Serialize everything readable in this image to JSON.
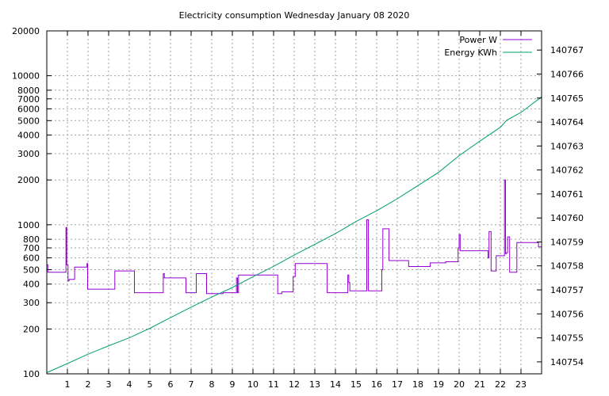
{
  "chart_data": {
    "type": "line",
    "title": "Electricity consumption Wednesday January 08 2020",
    "xlabel": "",
    "ylabel": "",
    "y2label": "",
    "x_ticks": [
      1,
      2,
      3,
      4,
      5,
      6,
      7,
      8,
      9,
      10,
      11,
      12,
      13,
      14,
      15,
      16,
      17,
      18,
      19,
      20,
      21,
      22,
      23
    ],
    "xlim": [
      0,
      24
    ],
    "y_scale": "log",
    "ylim": [
      100,
      20000
    ],
    "y_ticks": [
      100,
      200,
      300,
      400,
      500,
      600,
      700,
      800,
      1000,
      2000,
      3000,
      4000,
      5000,
      6000,
      7000,
      8000,
      10000,
      20000
    ],
    "y2lim": [
      140753.5,
      140767.8
    ],
    "y2_ticks": [
      140754,
      140755,
      140756,
      140757,
      140758,
      140759,
      140760,
      140761,
      140762,
      140763,
      140764,
      140765,
      140766,
      140767
    ],
    "grid": true,
    "legend_position": "top-right",
    "series": [
      {
        "name": "Power W",
        "axis": "left",
        "color": "#9400d3",
        "step": true,
        "x": [
          0,
          0.05,
          0.9,
          0.93,
          0.97,
          1.03,
          1.08,
          1.35,
          1.95,
          1.98,
          2.02,
          3.3,
          4.2,
          4.25,
          5.2,
          5.65,
          5.7,
          6.05,
          6.75,
          7.25,
          7.75,
          8.55,
          9.2,
          9.25,
          9.3,
          9.8,
          11.2,
          11.4,
          11.95,
          12.05,
          13.6,
          14.6,
          14.65,
          14.7,
          15.5,
          15.52,
          15.6,
          16.25,
          16.3,
          16.6,
          17.55,
          18.6,
          19.35,
          19.95,
          20.0,
          20.05,
          20.95,
          21.4,
          21.45,
          21.55,
          21.8,
          22.2,
          22.25,
          22.3,
          22.35,
          22.45,
          22.5,
          22.8,
          23.15,
          23.85,
          24.0
        ],
        "values": [
          540,
          480,
          480,
          960,
          540,
          420,
          430,
          520,
          550,
          370,
          370,
          490,
          490,
          350,
          350,
          470,
          440,
          440,
          350,
          470,
          345,
          350,
          440,
          350,
          460,
          460,
          345,
          355,
          450,
          550,
          350,
          460,
          410,
          360,
          360,
          1080,
          360,
          500,
          940,
          575,
          525,
          555,
          565,
          700,
          860,
          670,
          670,
          600,
          900,
          490,
          620,
          2000,
          640,
          650,
          830,
          480,
          480,
          760,
          760,
          710,
          710
        ]
      },
      {
        "name": "Energy KWh",
        "axis": "right",
        "color": "#009e73",
        "x": [
          0,
          1,
          2,
          3,
          4,
          5,
          6,
          7,
          8,
          9,
          10,
          11,
          12,
          13,
          14,
          15,
          16,
          17,
          18,
          19,
          20,
          21,
          22,
          22.3,
          23,
          24
        ],
        "values": [
          140753.55,
          140753.93,
          140754.32,
          140754.67,
          140755.0,
          140755.4,
          140755.84,
          140756.28,
          140756.7,
          140757.1,
          140757.55,
          140757.98,
          140758.45,
          140758.9,
          140759.35,
          140759.85,
          140760.3,
          140760.8,
          140761.35,
          140761.9,
          140762.6,
          140763.2,
          140763.78,
          140764.07,
          140764.4,
          140765.05
        ]
      }
    ]
  }
}
